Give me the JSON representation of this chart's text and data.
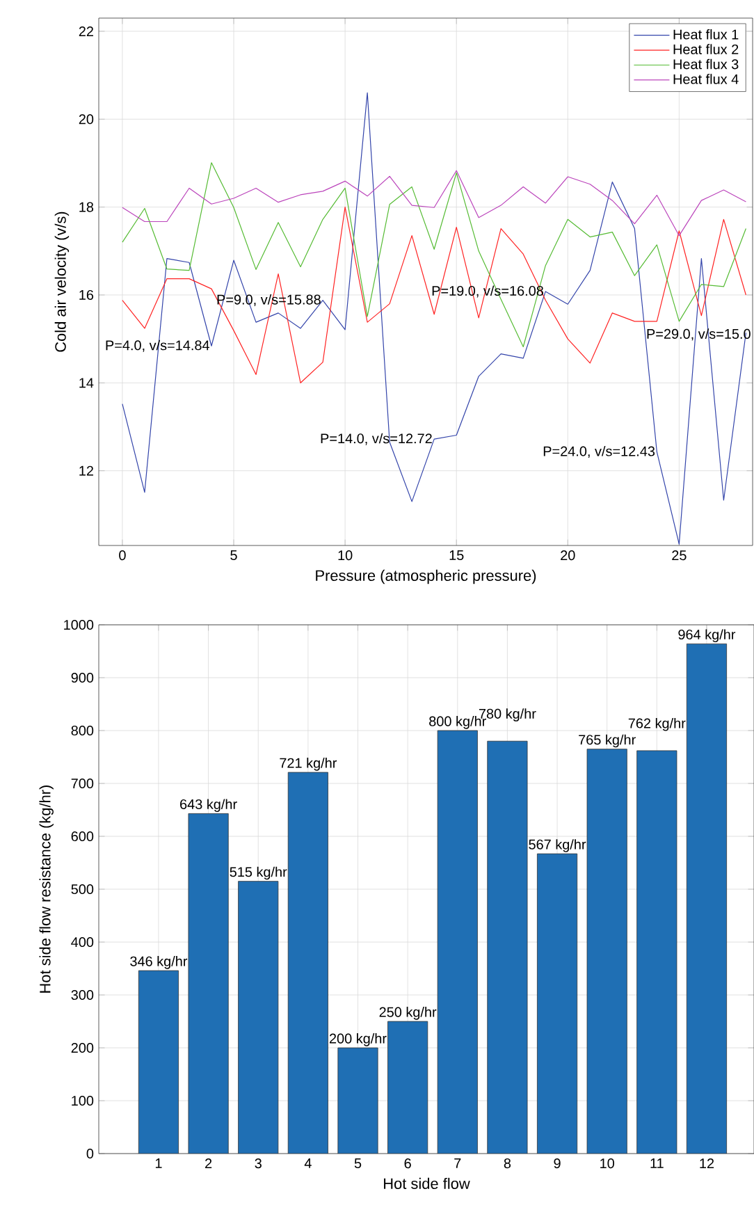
{
  "chart_data": [
    {
      "type": "line",
      "xlabel": "Pressure (atmospheric pressure)",
      "ylabel": "Cold air velocity (v/s)",
      "x": [
        0,
        1,
        2,
        3,
        4,
        5,
        6,
        7,
        8,
        9,
        10,
        11,
        12,
        13,
        14,
        15,
        16,
        17,
        18,
        19,
        20,
        21,
        22,
        23,
        24,
        25,
        26,
        27,
        28
      ],
      "series": [
        {
          "name": "Heat flux 1",
          "color": "#3344aa",
          "values": [
            13.52,
            11.51,
            16.83,
            16.74,
            14.84,
            16.79,
            15.38,
            15.59,
            15.24,
            15.88,
            15.21,
            20.6,
            12.65,
            11.3,
            12.72,
            12.81,
            14.15,
            14.66,
            14.56,
            16.08,
            15.79,
            16.56,
            18.57,
            17.51,
            12.43,
            10.33,
            16.83,
            11.33,
            15.14
          ]
        },
        {
          "name": "Heat flux 2",
          "color": "#ff2222",
          "values": [
            15.88,
            15.24,
            16.37,
            16.37,
            16.14,
            15.19,
            14.19,
            16.48,
            14.0,
            14.47,
            18.0,
            15.38,
            15.8,
            17.35,
            15.56,
            17.54,
            15.48,
            17.51,
            16.93,
            15.88,
            15.0,
            14.45,
            15.59,
            15.4,
            15.4,
            17.46,
            15.53,
            17.72,
            16.0
          ]
        },
        {
          "name": "Heat flux 3",
          "color": "#55bb33",
          "values": [
            17.2,
            17.97,
            16.59,
            16.56,
            19.01,
            17.99,
            16.58,
            17.65,
            16.64,
            17.72,
            18.43,
            15.51,
            18.06,
            18.46,
            17.04,
            18.78,
            17.0,
            15.9,
            14.82,
            16.67,
            17.72,
            17.32,
            17.43,
            16.44,
            17.14,
            15.4,
            16.24,
            16.19,
            17.51
          ]
        },
        {
          "name": "Heat flux 4",
          "color": "#bb44bb",
          "values": [
            17.99,
            17.67,
            17.67,
            18.43,
            18.07,
            18.2,
            18.43,
            18.11,
            18.28,
            18.36,
            18.59,
            18.25,
            18.7,
            18.04,
            17.99,
            18.83,
            17.76,
            18.04,
            18.46,
            18.09,
            18.69,
            18.52,
            18.15,
            17.62,
            18.27,
            17.35,
            18.15,
            18.39,
            18.12
          ]
        }
      ],
      "xlim": [
        -1.06,
        28.3
      ],
      "ylim": [
        10.3,
        22.3
      ],
      "xticks": [
        0,
        5,
        10,
        15,
        20,
        25
      ],
      "yticks": [
        12,
        14,
        16,
        18,
        20,
        22
      ],
      "grid": true,
      "legend": "top right",
      "annotations": [
        {
          "text": "P=4.0, v/s=14.84",
          "x": 4,
          "y": 14.84
        },
        {
          "text": "P=9.0, v/s=15.88",
          "x": 9,
          "y": 15.88
        },
        {
          "text": "P=14.0, v/s=12.72",
          "x": 14,
          "y": 12.72
        },
        {
          "text": "P=19.0, v/s=16.08",
          "x": 19,
          "y": 16.08
        },
        {
          "text": "P=24.0, v/s=12.43",
          "x": 24,
          "y": 12.43
        },
        "P=29.0, v/s=15.0"
      ]
    },
    {
      "type": "bar",
      "xlabel": "Hot side flow",
      "ylabel": "Hot side flow resistance (kg/hr)",
      "categories": [
        "1",
        "2",
        "3",
        "4",
        "5",
        "6",
        "7",
        "8",
        "9",
        "10",
        "11",
        "12"
      ],
      "values": [
        346,
        643,
        515,
        721,
        200,
        250,
        800,
        780,
        567,
        765,
        762,
        964
      ],
      "value_labels": [
        "346 kg/hr",
        "643 kg/hr",
        "515 kg/hr",
        "721 kg/hr",
        "200 kg/hr",
        "250 kg/hr",
        "800 kg/hr",
        "780 kg/hr",
        "567 kg/hr",
        "765 kg/hr",
        "762 kg/hr",
        "964 kg/hr"
      ],
      "color": "#1f6fb4",
      "ylim": [
        0,
        1000
      ],
      "yticks": [
        0,
        100,
        200,
        300,
        400,
        500,
        600,
        700,
        800,
        900,
        1000
      ],
      "grid": true
    }
  ]
}
